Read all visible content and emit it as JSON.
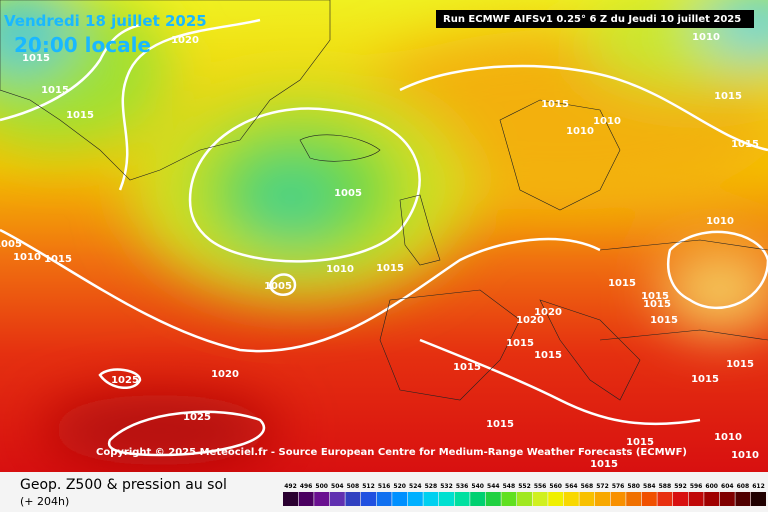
{
  "header": {
    "date": "Vendredi 18 juillet 2025",
    "time": "20:00 locale",
    "run": "Run ECMWF AIFSv1 0.25° 6 Z du Jeudi 10 juillet 2025"
  },
  "isobars": [
    1020,
    1015,
    1015,
    1015,
    1005,
    1005,
    1010,
    1015,
    1010,
    1015,
    1005,
    1015,
    1010,
    1010,
    1010,
    1015,
    1015,
    1010,
    1015,
    1015,
    1015,
    1015,
    1020,
    1020,
    1015,
    1015,
    1015,
    1015,
    1015,
    1025,
    1020,
    1025,
    1015,
    1015,
    1015,
    1010,
    1010
  ],
  "copyright": "Copyright © 2025 Meteociel.fr - Source European Centre for Medium-Range Weather Forecasts (ECMWF)",
  "footer": {
    "title": "Geop. Z500 & pression au sol",
    "lead": "(+ 204h)"
  },
  "legend": [
    492,
    496,
    500,
    504,
    508,
    512,
    516,
    520,
    524,
    528,
    532,
    536,
    540,
    544,
    548,
    552,
    556,
    560,
    564,
    568,
    572,
    576,
    580,
    584,
    588,
    592,
    596,
    600,
    604,
    608,
    612
  ]
}
